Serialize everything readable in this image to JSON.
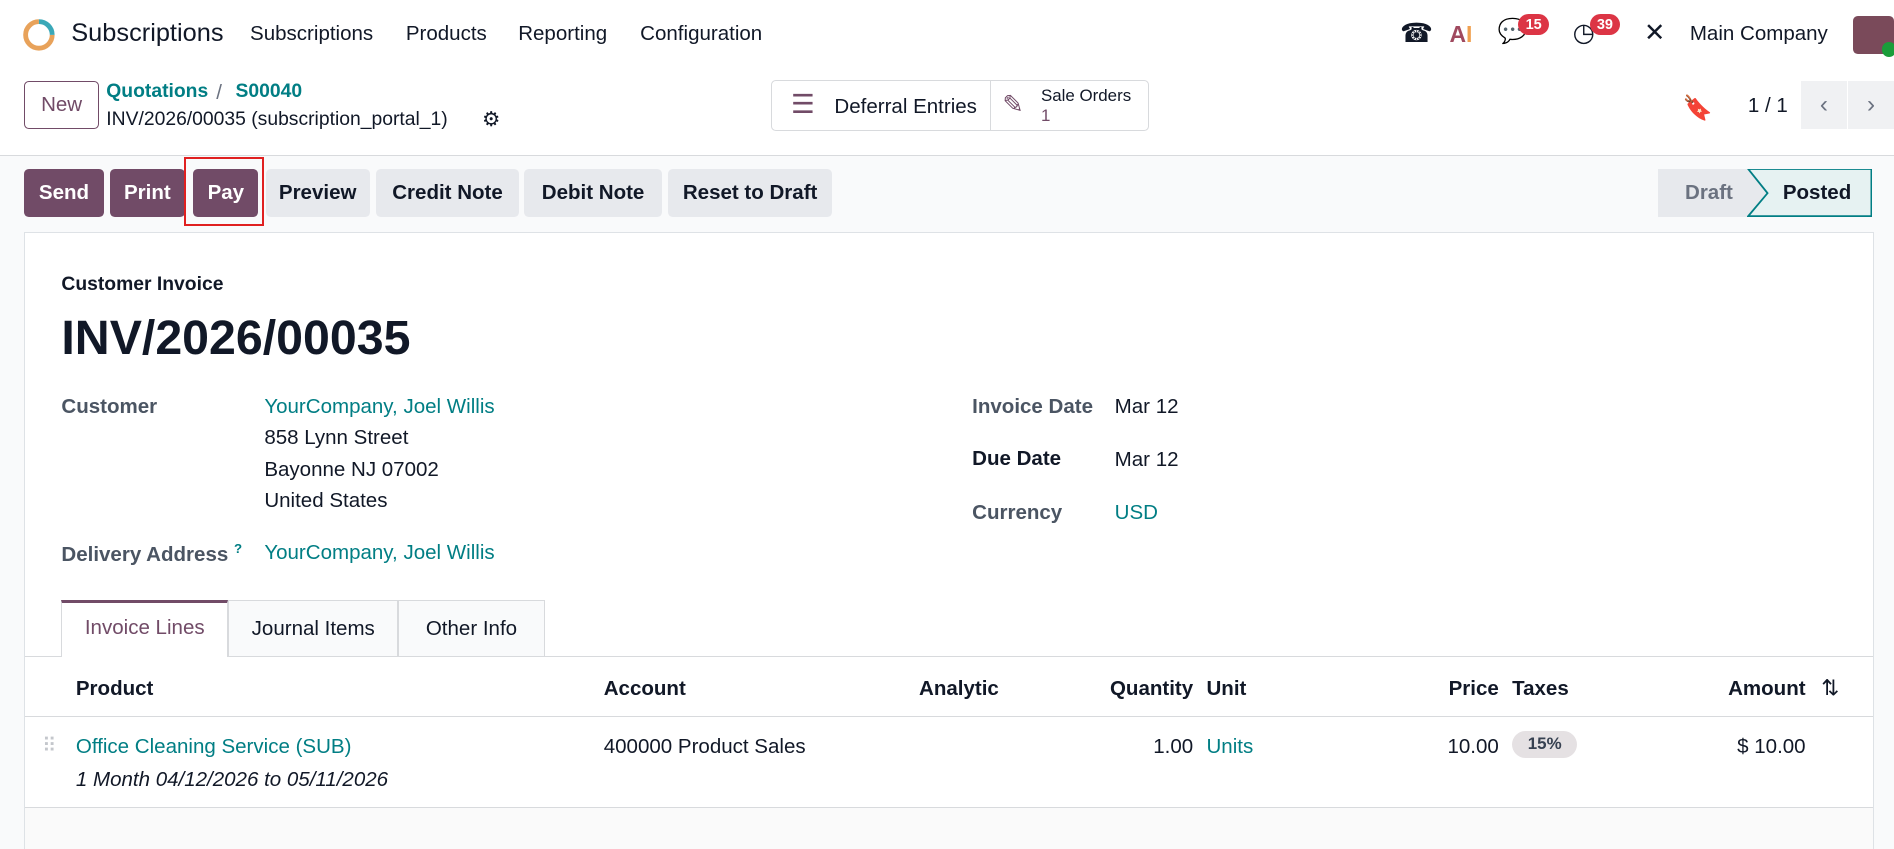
{
  "nav": {
    "app": "Subscriptions",
    "menu": [
      "Subscriptions",
      "Products",
      "Reporting",
      "Configuration"
    ],
    "chat_badge": "15",
    "activity_badge": "39",
    "company": "Main Company"
  },
  "control": {
    "new_label": "New",
    "breadcrumb": [
      "Quotations",
      "S00040"
    ],
    "record": "INV/2026/00035 (subscription_portal_1)",
    "smart": {
      "deferral": "Deferral Entries",
      "sale_orders_label": "Sale Orders",
      "sale_orders_count": "1"
    },
    "pager": "1 / 1"
  },
  "actions": {
    "buttons": [
      "Send",
      "Print",
      "Pay",
      "Preview",
      "Credit Note",
      "Debit Note",
      "Reset to Draft"
    ],
    "status": [
      "Draft",
      "Posted"
    ],
    "current_status": "Posted"
  },
  "invoice": {
    "type": "Customer Invoice",
    "number": "INV/2026/00035",
    "customer_label": "Customer",
    "customer": "YourCompany, Joel Willis",
    "address": [
      "858 Lynn Street",
      "Bayonne NJ 07002",
      "United States"
    ],
    "delivery_label": "Delivery Address",
    "delivery_help": "?",
    "delivery": "YourCompany, Joel Willis",
    "invoice_date_label": "Invoice Date",
    "invoice_date": "Mar 12",
    "due_date_label": "Due Date",
    "due_date": "Mar 12",
    "currency_label": "Currency",
    "currency": "USD"
  },
  "tabs": [
    "Invoice Lines",
    "Journal Items",
    "Other Info"
  ],
  "table": {
    "headers": [
      "Product",
      "Account",
      "Analytic",
      "Quantity",
      "Unit",
      "Price",
      "Taxes",
      "Amount"
    ],
    "rows": [
      {
        "product": "Office Cleaning Service (SUB)",
        "description": "1 Month 04/12/2026 to 05/11/2026",
        "account": "400000 Product Sales",
        "analytic": "",
        "quantity": "1.00",
        "unit": "Units",
        "price": "10.00",
        "taxes": "15%",
        "amount": "$ 10.00"
      }
    ]
  },
  "colors": {
    "primary": "#714b67",
    "link": "#017e84",
    "badge": "#dc3545"
  }
}
